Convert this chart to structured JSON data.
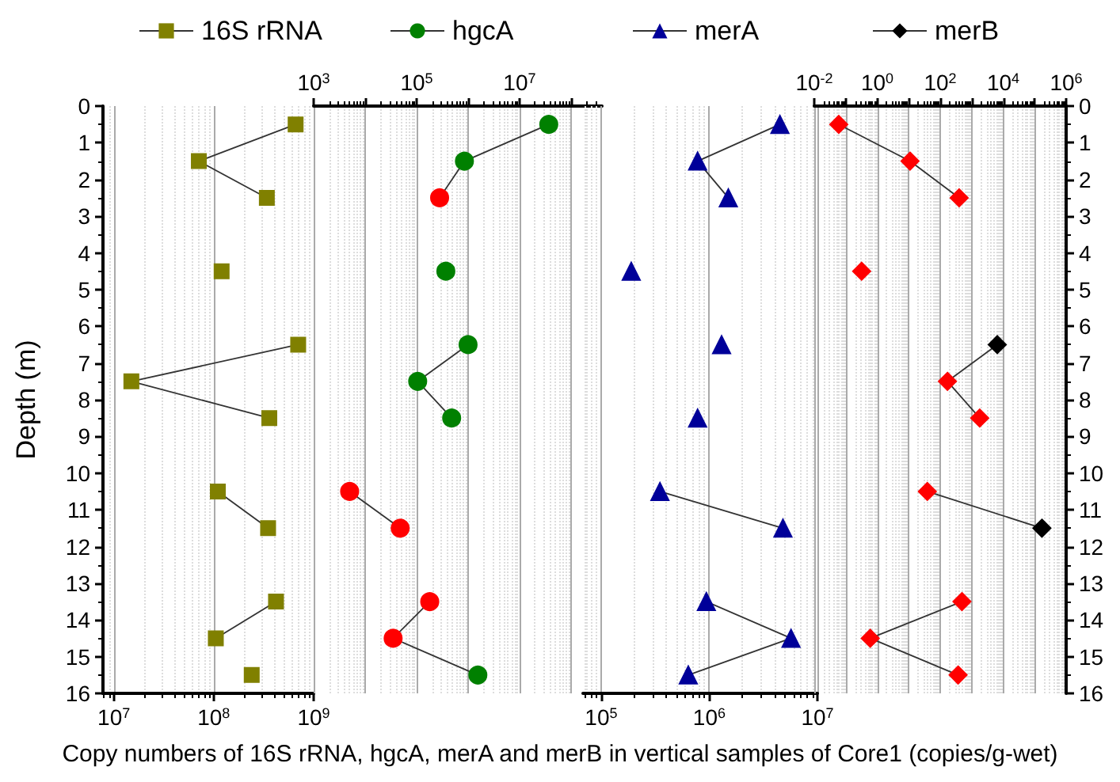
{
  "chart_data": [
    {
      "type": "line",
      "xlabel": "Copy numbers of 16S rRNA, hgcA, merA and merB in vertical samples of Core1 (copies/g-wet)",
      "ylabel": "Depth (m)",
      "log": "x",
      "grid": "x",
      "legend": "top",
      "marker": "square",
      "line_style": "solid",
      "xlim": [
        7800000,
        1000000000
      ],
      "xticks": [
        {
          "value": 10000000,
          "label": "10$^{7}$"
        },
        {
          "value": 100000000,
          "label": "10$^{8}$"
        },
        {
          "value": 1000000000,
          "label": "10$^{9}$"
        }
      ],
      "ylim": [
        16,
        0
      ],
      "yticks": [
        0,
        1,
        2,
        3,
        4,
        5,
        6,
        7,
        8,
        9,
        10,
        11,
        12,
        13,
        14,
        15,
        16
      ],
      "series": [
        {
          "name": "16S rRNA",
          "color": "#808000",
          "x": [
            660000000,
            71000000,
            340000000,
            null,
            120000000,
            null,
            700000000,
            15000000,
            360000000,
            null,
            110000000,
            350000000,
            null,
            420000000,
            105000000,
            null,
            240000000
          ],
          "values": [
            0.5,
            1.5,
            2.5,
            null,
            4.5,
            null,
            6.5,
            7.5,
            8.5,
            null,
            10.5,
            11.5,
            null,
            13.5,
            14.5,
            null,
            15.5
          ]
        }
      ]
    },
    {
      "type": "line",
      "log": "x",
      "grid": "x",
      "legend": "top",
      "marker": "circle",
      "line_style": "solid",
      "tick_labels": "x",
      "xlim": [
        1000,
        400000000
      ],
      "xticks": [
        {
          "value": 1000,
          "label": "10$^{3}$"
        },
        {
          "value": 10000,
          "label": null
        },
        {
          "value": 100000,
          "label": "10$^{5}$"
        },
        {
          "value": 1000000,
          "label": null
        },
        {
          "value": 10000000,
          "label": "10$^{7}$"
        },
        {
          "value": 100000000,
          "label": null
        }
      ],
      "ylim": [
        16,
        0
      ],
      "series": [
        {
          "name": "hgcA",
          "color": "#008000",
          "colors": [
            "#008000",
            "#008000",
            "#ff0000",
            null,
            "#008000",
            null,
            "#008000",
            "#008000",
            "#008000",
            null,
            "#ff0000",
            "#ff0000",
            null,
            "#ff0000",
            "#ff0000",
            "#008000"
          ],
          "x": [
            37000000,
            850000,
            280000,
            null,
            370000,
            null,
            1000000,
            105000,
            480000,
            null,
            5000,
            48000,
            null,
            180000,
            35000,
            1550000
          ],
          "values": [
            0.5,
            1.5,
            2.5,
            null,
            4.5,
            null,
            6.5,
            7.5,
            8.5,
            null,
            10.5,
            11.5,
            null,
            13.5,
            14.5,
            15.5
          ]
        }
      ]
    },
    {
      "type": "line",
      "log": "x",
      "grid": "x",
      "legend": "top",
      "marker": "triangle",
      "line_style": "solid",
      "tick_labels": "x",
      "xlim": [
        68000,
        10000000
      ],
      "xticks": [
        {
          "value": 100000,
          "label": "10$^{5}$"
        },
        {
          "value": 1000000,
          "label": "10$^{6}$"
        },
        {
          "value": 10000000,
          "label": "10$^{7}$"
        }
      ],
      "ylim": [
        16,
        0
      ],
      "series": [
        {
          "name": "merA",
          "color": "#000099",
          "x": [
            4500000,
            780000,
            1500000,
            null,
            190000,
            null,
            1300000,
            null,
            780000,
            null,
            350000,
            4800000,
            null,
            940000,
            5700000,
            640000
          ],
          "values": [
            0.5,
            1.5,
            2.5,
            null,
            4.5,
            null,
            6.5,
            null,
            8.5,
            null,
            10.5,
            11.5,
            null,
            13.5,
            14.5,
            15.5
          ]
        }
      ]
    },
    {
      "type": "line",
      "log": "x",
      "grid": "x",
      "legend": "top",
      "marker": "diamond",
      "line_style": "solid",
      "xlim": [
        0.01,
        1000000
      ],
      "xticks": [
        {
          "value": 0.01,
          "label": "10$^{-2}$"
        },
        {
          "value": 0.1,
          "label": null
        },
        {
          "value": 1,
          "label": "10$^{0}$"
        },
        {
          "value": 10,
          "label": null
        },
        {
          "value": 100,
          "label": "10$^{2}$"
        },
        {
          "value": 1000,
          "label": null
        },
        {
          "value": 10000,
          "label": "10$^{4}$"
        },
        {
          "value": 100000,
          "label": null
        },
        {
          "value": 1000000,
          "label": "10$^{6}$"
        }
      ],
      "ylim": [
        16,
        0
      ],
      "yticks": [
        0,
        1,
        2,
        3,
        4,
        5,
        6,
        7,
        8,
        9,
        10,
        11,
        12,
        13,
        14,
        15,
        16
      ],
      "series": [
        {
          "name": "merB",
          "color": "#000000",
          "colors": [
            "#ff0000",
            "#ff0000",
            "#ff0000",
            null,
            "#ff0000",
            null,
            "#000000",
            "#ff0000",
            "#ff0000",
            null,
            "#ff0000",
            "#000000",
            null,
            "#ff0000",
            "#ff0000",
            "#ff0000"
          ],
          "x": [
            0.06,
            11,
            400,
            null,
            0.32,
            null,
            6500,
            170,
            1800,
            null,
            39,
            170000,
            null,
            490,
            0.6,
            370
          ],
          "values": [
            0.5,
            1.5,
            2.5,
            null,
            4.5,
            null,
            6.5,
            7.5,
            8.5,
            null,
            10.5,
            11.5,
            null,
            13.5,
            14.5,
            15.5
          ]
        }
      ]
    }
  ]
}
